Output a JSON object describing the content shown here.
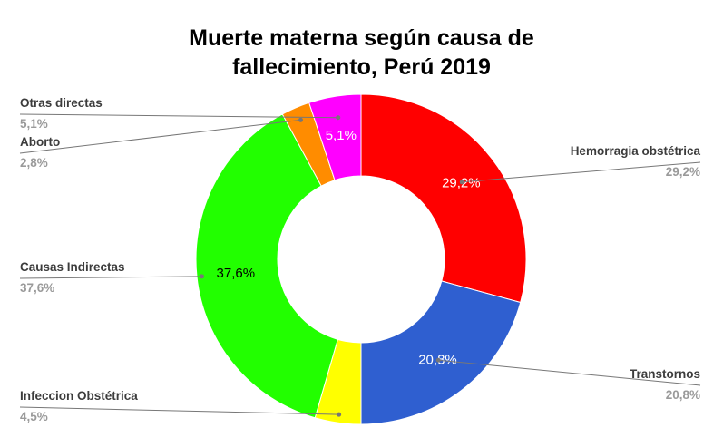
{
  "chart_data": {
    "type": "pie",
    "donut": true,
    "title": [
      "Muerte materna según causa de",
      "fallecimiento, Perú 2019"
    ],
    "slices": [
      {
        "name": "Hemorragia obstétrica",
        "value": 29.2,
        "label": "29,2%",
        "color": "#ff0000",
        "inner_text_color": "#ffffff"
      },
      {
        "name": "Transtornos",
        "value": 20.8,
        "label": "20,8%",
        "color": "#2f5fd0",
        "inner_text_color": "#ffffff"
      },
      {
        "name": "Infeccion Obstétrica",
        "value": 4.5,
        "label": "4,5%",
        "color": "#ffff00",
        "inner_text_color": ""
      },
      {
        "name": "Causas Indirectas",
        "value": 37.6,
        "label": "37,6%",
        "color": "#22ff00",
        "inner_text_color": "#000000"
      },
      {
        "name": "Aborto",
        "value": 2.8,
        "label": "2,8%",
        "color": "#ff8c00",
        "inner_text_color": ""
      },
      {
        "name": "Otras directas",
        "value": 5.1,
        "label": "5,1%",
        "color": "#ff00ff",
        "inner_text_color": "#ffffff"
      }
    ],
    "legend": "callout-labels"
  }
}
